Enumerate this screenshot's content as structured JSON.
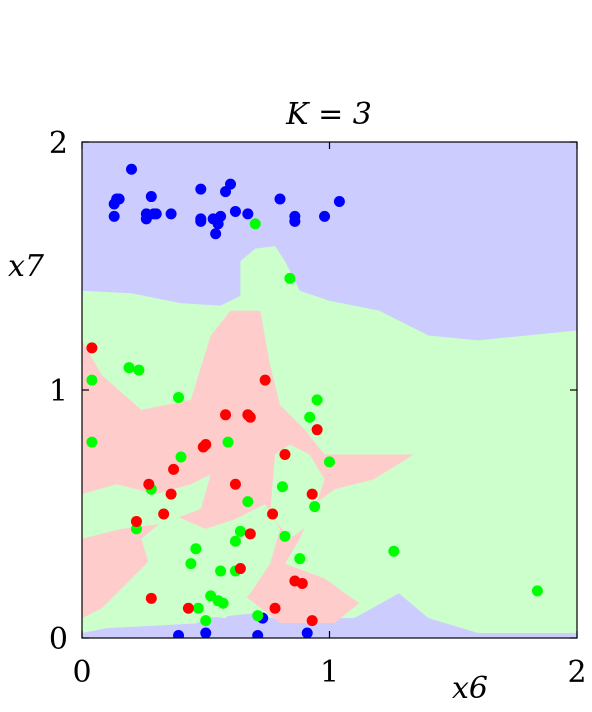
{
  "chart_data": {
    "type": "scatter",
    "title": "K = 3",
    "xlabel": "x6",
    "ylabel": "x7",
    "xlim": [
      0,
      2
    ],
    "ylim": [
      0,
      2
    ],
    "x_ticks": [
      {
        "value": 0,
        "label": "0"
      },
      {
        "value": 1,
        "label": "1"
      },
      {
        "value": 2,
        "label": "2"
      }
    ],
    "y_ticks": [
      {
        "value": 0,
        "label": "0"
      },
      {
        "value": 1,
        "label": "1"
      },
      {
        "value": 2,
        "label": "2"
      }
    ],
    "grid": false,
    "legend": "none",
    "colors": {
      "background_plot": "#ccccff",
      "region_blue": "#ccccff",
      "region_green": "#ccffcc",
      "region_red": "#ffcccc",
      "point_blue": "#0000ff",
      "point_green": "#00ff00",
      "point_red": "#ff0000"
    },
    "regions": [
      {
        "class": "green",
        "polygon": [
          [
            0.0,
            1.4
          ],
          [
            0.2,
            1.39
          ],
          [
            0.4,
            1.35
          ],
          [
            0.56,
            1.34
          ],
          [
            0.64,
            1.38
          ],
          [
            0.64,
            1.52
          ],
          [
            0.7,
            1.57
          ],
          [
            0.78,
            1.58
          ],
          [
            0.82,
            1.52
          ],
          [
            0.88,
            1.4
          ],
          [
            1.0,
            1.36
          ],
          [
            1.2,
            1.32
          ],
          [
            1.4,
            1.22
          ],
          [
            1.6,
            1.2
          ],
          [
            2.0,
            1.24
          ],
          [
            2.0,
            0.02
          ],
          [
            1.6,
            0.02
          ],
          [
            1.4,
            0.08
          ],
          [
            1.28,
            0.18
          ],
          [
            1.1,
            0.08
          ],
          [
            0.92,
            0.08
          ],
          [
            0.7,
            0.04
          ],
          [
            0.48,
            0.06
          ],
          [
            0.3,
            0.05
          ],
          [
            0.1,
            0.04
          ],
          [
            0.0,
            0.02
          ]
        ]
      },
      {
        "class": "blue",
        "polygon": [
          [
            0.36,
            0.0
          ],
          [
            0.5,
            0.08
          ],
          [
            0.7,
            0.1
          ],
          [
            0.84,
            0.06
          ],
          [
            0.96,
            0.03
          ],
          [
            1.1,
            0.0
          ]
        ]
      },
      {
        "class": "red",
        "polygon": [
          [
            0.0,
            1.2
          ],
          [
            0.08,
            1.06
          ],
          [
            0.24,
            0.92
          ],
          [
            0.44,
            0.96
          ],
          [
            0.52,
            1.22
          ],
          [
            0.6,
            1.32
          ],
          [
            0.72,
            1.32
          ],
          [
            0.76,
            1.1
          ],
          [
            0.8,
            0.94
          ],
          [
            0.9,
            0.84
          ],
          [
            0.98,
            0.74
          ],
          [
            1.06,
            0.74
          ],
          [
            1.34,
            0.74
          ],
          [
            1.18,
            0.64
          ],
          [
            1.02,
            0.6
          ],
          [
            0.94,
            0.54
          ],
          [
            0.88,
            0.4
          ],
          [
            0.82,
            0.3
          ],
          [
            0.98,
            0.24
          ],
          [
            1.12,
            0.14
          ],
          [
            1.02,
            0.06
          ],
          [
            0.8,
            0.06
          ],
          [
            0.62,
            0.2
          ],
          [
            0.48,
            0.12
          ],
          [
            0.36,
            0.2
          ],
          [
            0.3,
            0.34
          ],
          [
            0.2,
            0.24
          ],
          [
            0.08,
            0.12
          ],
          [
            0.0,
            0.08
          ]
        ]
      },
      {
        "class": "green",
        "polygon": [
          [
            0.0,
            0.58
          ],
          [
            0.14,
            0.62
          ],
          [
            0.3,
            0.58
          ],
          [
            0.44,
            0.62
          ],
          [
            0.52,
            0.66
          ],
          [
            0.48,
            0.52
          ],
          [
            0.32,
            0.46
          ],
          [
            0.16,
            0.44
          ],
          [
            0.0,
            0.4
          ]
        ]
      },
      {
        "class": "green",
        "polygon": [
          [
            0.24,
            0.4
          ],
          [
            0.36,
            0.5
          ],
          [
            0.5,
            0.44
          ],
          [
            0.62,
            0.48
          ],
          [
            0.74,
            0.54
          ],
          [
            0.8,
            0.44
          ],
          [
            0.76,
            0.3
          ],
          [
            0.68,
            0.18
          ],
          [
            0.58,
            0.08
          ],
          [
            0.42,
            0.1
          ],
          [
            0.3,
            0.2
          ]
        ]
      },
      {
        "class": "green",
        "polygon": [
          [
            0.78,
            0.74
          ],
          [
            0.84,
            0.78
          ],
          [
            0.92,
            0.74
          ],
          [
            0.98,
            0.64
          ],
          [
            0.92,
            0.46
          ],
          [
            0.84,
            0.4
          ],
          [
            0.76,
            0.5
          ]
        ]
      }
    ],
    "series": [
      {
        "color": "blue",
        "points": [
          [
            0.2,
            1.89
          ],
          [
            0.13,
            1.75
          ],
          [
            0.14,
            1.77
          ],
          [
            0.15,
            1.77
          ],
          [
            0.13,
            1.7
          ],
          [
            0.28,
            1.78
          ],
          [
            0.26,
            1.71
          ],
          [
            0.26,
            1.69
          ],
          [
            0.29,
            1.71
          ],
          [
            0.3,
            1.71
          ],
          [
            0.36,
            1.71
          ],
          [
            0.48,
            1.81
          ],
          [
            0.48,
            1.69
          ],
          [
            0.48,
            1.68
          ],
          [
            0.53,
            1.69
          ],
          [
            0.55,
            1.67
          ],
          [
            0.54,
            1.63
          ],
          [
            0.56,
            1.7
          ],
          [
            0.58,
            1.8
          ],
          [
            0.6,
            1.83
          ],
          [
            0.62,
            1.72
          ],
          [
            0.67,
            1.71
          ],
          [
            0.8,
            1.77
          ],
          [
            0.86,
            1.7
          ],
          [
            0.86,
            1.68
          ],
          [
            0.98,
            1.7
          ],
          [
            1.04,
            1.76
          ],
          [
            0.39,
            0.01
          ],
          [
            0.5,
            0.02
          ],
          [
            0.71,
            0.01
          ],
          [
            0.73,
            0.08
          ],
          [
            0.91,
            0.02
          ]
        ]
      },
      {
        "color": "green",
        "points": [
          [
            0.7,
            1.67
          ],
          [
            0.84,
            1.45
          ],
          [
            0.04,
            1.04
          ],
          [
            0.19,
            1.09
          ],
          [
            0.23,
            1.08
          ],
          [
            0.39,
            0.97
          ],
          [
            0.95,
            0.96
          ],
          [
            0.92,
            0.89
          ],
          [
            0.04,
            0.79
          ],
          [
            0.59,
            0.79
          ],
          [
            1.0,
            0.71
          ],
          [
            0.4,
            0.73
          ],
          [
            0.81,
            0.61
          ],
          [
            0.28,
            0.6
          ],
          [
            0.67,
            0.55
          ],
          [
            0.94,
            0.53
          ],
          [
            0.22,
            0.44
          ],
          [
            0.64,
            0.43
          ],
          [
            0.62,
            0.39
          ],
          [
            0.82,
            0.41
          ],
          [
            0.46,
            0.36
          ],
          [
            0.88,
            0.32
          ],
          [
            1.26,
            0.35
          ],
          [
            0.44,
            0.3
          ],
          [
            0.56,
            0.27
          ],
          [
            0.62,
            0.27
          ],
          [
            0.52,
            0.17
          ],
          [
            0.55,
            0.15
          ],
          [
            0.57,
            0.14
          ],
          [
            0.47,
            0.12
          ],
          [
            0.5,
            0.07
          ],
          [
            0.71,
            0.09
          ],
          [
            1.84,
            0.19
          ]
        ]
      },
      {
        "color": "red",
        "points": [
          [
            0.04,
            1.17
          ],
          [
            0.74,
            1.04
          ],
          [
            0.58,
            0.9
          ],
          [
            0.68,
            0.89
          ],
          [
            0.67,
            0.9
          ],
          [
            0.95,
            0.84
          ],
          [
            0.5,
            0.78
          ],
          [
            0.49,
            0.77
          ],
          [
            0.82,
            0.74
          ],
          [
            0.37,
            0.68
          ],
          [
            0.62,
            0.62
          ],
          [
            0.27,
            0.62
          ],
          [
            0.36,
            0.58
          ],
          [
            0.93,
            0.58
          ],
          [
            0.33,
            0.5
          ],
          [
            0.77,
            0.5
          ],
          [
            0.22,
            0.47
          ],
          [
            0.68,
            0.42
          ],
          [
            0.64,
            0.28
          ],
          [
            0.86,
            0.23
          ],
          [
            0.89,
            0.22
          ],
          [
            0.28,
            0.16
          ],
          [
            0.43,
            0.12
          ],
          [
            0.78,
            0.12
          ],
          [
            0.93,
            0.07
          ]
        ]
      }
    ]
  }
}
